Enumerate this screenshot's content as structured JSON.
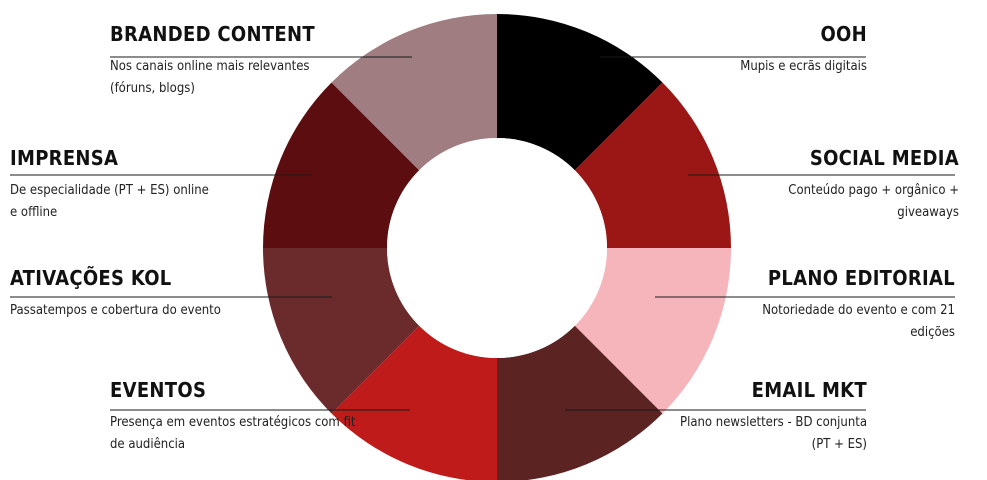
{
  "segments": [
    {
      "key": "ooh",
      "title": "OOH",
      "description": "Mupis e ecrãs digitais",
      "color": "#000000"
    },
    {
      "key": "social_media",
      "title": "SOCIAL MEDIA",
      "description": "Conteúdo pago + orgânico + giveaways",
      "color": "#9a1716"
    },
    {
      "key": "plano_editorial",
      "title": "PLANO EDITORIAL",
      "description": "Notoriedade do evento e com 21 edições",
      "color": "#f6b4bb"
    },
    {
      "key": "email_mkt",
      "title": "EMAIL MKT",
      "description": "Plano newsletters  - BD conjunta (PT + ES)",
      "color": "#5b2321"
    },
    {
      "key": "eventos",
      "title": "EVENTOS",
      "description": "Presença em eventos estratégicos com fit de audiência",
      "color": "#bf1b1b"
    },
    {
      "key": "ativacoes_kol",
      "title": "ATIVAÇÕES KOL",
      "description": "Passatempos e cobertura do evento",
      "color": "#6b2b2c"
    },
    {
      "key": "imprensa",
      "title": "IMPRENSA",
      "description": "De especialidade (PT + ES) online e offline",
      "color": "#5c0d0f"
    },
    {
      "key": "branded_content",
      "title": "BRANDED CONTENT",
      "description": "Nos canais online mais relevantes (fóruns, blogs)",
      "color": "#9f7d80"
    }
  ]
}
